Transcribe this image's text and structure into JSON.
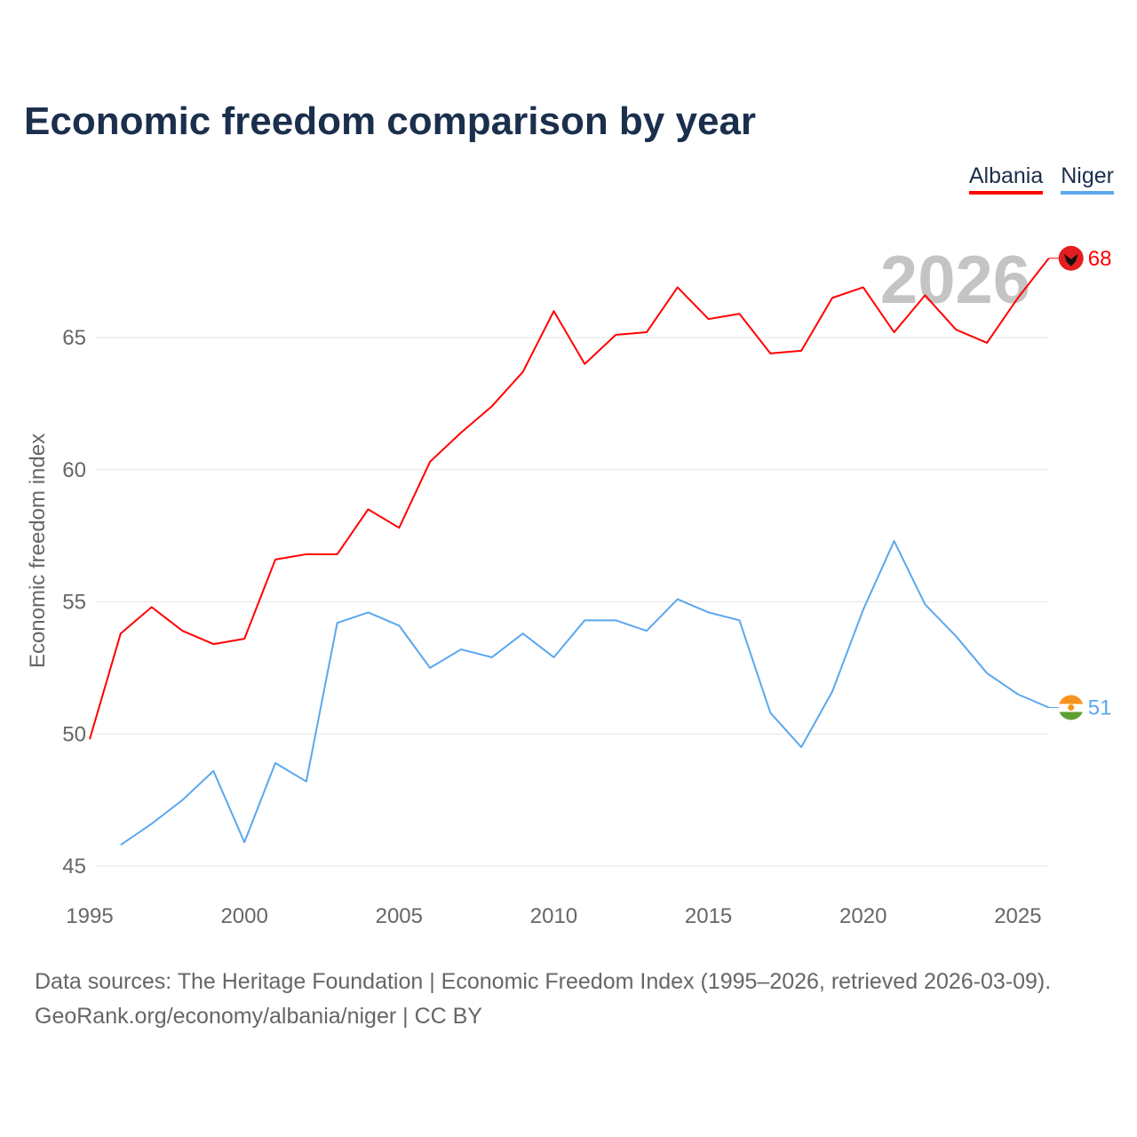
{
  "chart_data": {
    "type": "line",
    "title": "Economic freedom comparison by year",
    "xlabel": "",
    "ylabel": "Economic freedom index",
    "xlim": [
      1995,
      2026
    ],
    "ylim": [
      45,
      68.5
    ],
    "x_ticks": [
      "1995",
      "2000",
      "2005",
      "2010",
      "2015",
      "2020",
      "2025"
    ],
    "y_ticks": [
      "45",
      "50",
      "55",
      "60",
      "65"
    ],
    "grid": true,
    "legend_position": "top-right",
    "year_watermark": "2026",
    "series": [
      {
        "name": "Albania",
        "color": "#ff0000",
        "end_label": "68",
        "x": [
          1995,
          1996,
          1997,
          1998,
          1999,
          2000,
          2001,
          2002,
          2003,
          2004,
          2005,
          2006,
          2007,
          2008,
          2009,
          2010,
          2011,
          2012,
          2013,
          2014,
          2015,
          2016,
          2017,
          2018,
          2019,
          2020,
          2021,
          2022,
          2023,
          2024,
          2025,
          2026
        ],
        "values": [
          49.8,
          53.8,
          54.8,
          53.9,
          53.4,
          53.6,
          56.6,
          56.8,
          56.8,
          58.5,
          57.8,
          60.3,
          61.4,
          62.4,
          63.7,
          66.0,
          64.0,
          65.1,
          65.2,
          66.9,
          65.7,
          65.9,
          64.4,
          64.5,
          66.5,
          66.9,
          65.2,
          66.6,
          65.3,
          64.8,
          66.5,
          68.0
        ]
      },
      {
        "name": "Niger",
        "color": "#5ba7ee",
        "end_label": "51",
        "x": [
          1996,
          1997,
          1998,
          1999,
          2000,
          2001,
          2002,
          2003,
          2004,
          2005,
          2006,
          2007,
          2008,
          2009,
          2010,
          2011,
          2012,
          2013,
          2014,
          2015,
          2016,
          2017,
          2018,
          2019,
          2020,
          2021,
          2022,
          2023,
          2024,
          2025,
          2026
        ],
        "values": [
          45.8,
          46.6,
          47.5,
          48.6,
          45.9,
          48.9,
          48.2,
          54.2,
          54.6,
          54.1,
          52.5,
          53.2,
          52.9,
          53.8,
          52.9,
          54.3,
          54.3,
          53.9,
          55.1,
          54.6,
          54.3,
          50.8,
          49.5,
          51.6,
          54.7,
          57.3,
          54.9,
          53.7,
          52.3,
          51.5,
          51.0
        ]
      }
    ]
  },
  "footer": {
    "line1": "Data sources: The Heritage Foundation | Economic Freedom Index (1995–2026, retrieved 2026-03-09).",
    "line2": "GeoRank.org/economy/albania/niger | CC BY"
  }
}
